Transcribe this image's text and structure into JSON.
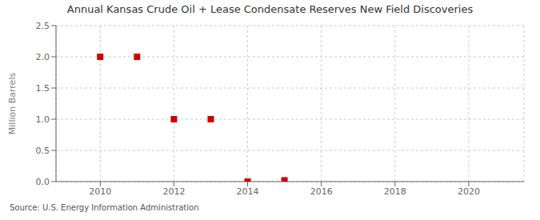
{
  "chart_data": {
    "type": "scatter",
    "title": "Annual Kansas Crude Oil + Lease Condensate Reserves New Field Discoveries",
    "y_label": "Million Barrels",
    "annotations": [
      "Source: U.S. Energy Information Administration"
    ],
    "x": [
      2010,
      2011,
      2012,
      2013,
      2014,
      2015
    ],
    "values": [
      2.0,
      2.0,
      1.0,
      1.0,
      0.0,
      0.02
    ],
    "color": "#cc0000",
    "marker": "square",
    "xlim": [
      2008.8,
      2021.5
    ],
    "ylim": [
      0,
      2.5
    ],
    "xticks": [
      2010,
      2012,
      2014,
      2016,
      2018,
      2020
    ],
    "yticks": [
      {
        "value": 0.0,
        "label": "0.0"
      },
      0.5,
      {
        "value": 1.0,
        "label": "1.0"
      },
      1.5,
      {
        "value": 2.0,
        "label": "2.0"
      },
      2.5
    ],
    "grid": true
  }
}
